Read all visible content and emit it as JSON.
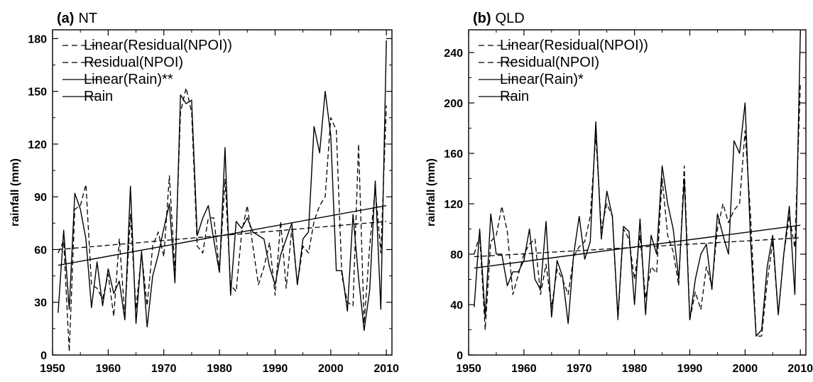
{
  "chart_data": [
    {
      "type": "line",
      "panel": "(a)",
      "title": "NT",
      "xlabel": "",
      "ylabel": "rainfall (mm)",
      "xlim": [
        1950,
        2011
      ],
      "ylim": [
        0,
        185
      ],
      "xticks": [
        1950,
        1960,
        1970,
        1980,
        1990,
        2000,
        2010
      ],
      "yticks": [
        0,
        30,
        60,
        90,
        120,
        150,
        180
      ],
      "grid": false,
      "legend_position": "top-left",
      "x": [
        1951,
        1952,
        1953,
        1954,
        1955,
        1956,
        1957,
        1958,
        1959,
        1960,
        1961,
        1962,
        1963,
        1964,
        1965,
        1966,
        1967,
        1968,
        1969,
        1970,
        1971,
        1972,
        1973,
        1974,
        1975,
        1976,
        1977,
        1978,
        1979,
        1980,
        1981,
        1982,
        1983,
        1984,
        1985,
        1986,
        1987,
        1988,
        1989,
        1990,
        1991,
        1992,
        1993,
        1994,
        1995,
        1996,
        1997,
        1998,
        1999,
        2000,
        2001,
        2002,
        2003,
        2004,
        2005,
        2006,
        2007,
        2008,
        2009,
        2010
      ],
      "series": [
        {
          "name": "Linear(Residual(NPOI))",
          "style": "dashed",
          "x": [
            1951,
            2010
          ],
          "values": [
            60,
            76
          ]
        },
        {
          "name": "Residual(NPOI)",
          "style": "dashed",
          "values": [
            58,
            65,
            2,
            83,
            85,
            97,
            40,
            38,
            32,
            46,
            22,
            66,
            22,
            80,
            26,
            58,
            28,
            62,
            70,
            56,
            102,
            48,
            138,
            152,
            138,
            62,
            58,
            78,
            78,
            48,
            100,
            40,
            36,
            70,
            85,
            62,
            40,
            50,
            64,
            34,
            76,
            38,
            72,
            40,
            62,
            58,
            76,
            85,
            90,
            135,
            128,
            45,
            30,
            28,
            120,
            18,
            62,
            95,
            58,
            142
          ]
        },
        {
          "name": "Linear(Rain)**",
          "style": "solid",
          "x": [
            1951,
            2010
          ],
          "values": [
            51,
            85
          ]
        },
        {
          "name": "Rain",
          "style": "solid",
          "values": [
            24,
            71,
            26,
            92,
            83,
            66,
            27,
            53,
            28,
            49,
            35,
            42,
            20,
            96,
            18,
            59,
            16,
            45,
            57,
            72,
            86,
            41,
            148,
            143,
            145,
            68,
            78,
            85,
            65,
            47,
            118,
            34,
            76,
            72,
            78,
            70,
            68,
            66,
            50,
            40,
            57,
            66,
            75,
            40,
            66,
            70,
            130,
            115,
            150,
            125,
            48,
            48,
            25,
            80,
            44,
            14,
            37,
            99,
            26,
            179
          ]
        }
      ]
    },
    {
      "type": "line",
      "panel": "(b)",
      "title": "QLD",
      "xlabel": "",
      "ylabel": "rainfall (mm)",
      "xlim": [
        1950,
        2011
      ],
      "ylim": [
        0,
        258
      ],
      "xticks": [
        1950,
        1960,
        1970,
        1980,
        1990,
        2000,
        2010
      ],
      "yticks": [
        0,
        40,
        80,
        120,
        160,
        200,
        240
      ],
      "grid": false,
      "legend_position": "top-left",
      "x": [
        1951,
        1952,
        1953,
        1954,
        1955,
        1956,
        1957,
        1958,
        1959,
        1960,
        1961,
        1962,
        1963,
        1964,
        1965,
        1966,
        1967,
        1968,
        1969,
        1970,
        1971,
        1972,
        1973,
        1974,
        1975,
        1976,
        1977,
        1978,
        1979,
        1980,
        1981,
        1982,
        1983,
        1984,
        1985,
        1986,
        1987,
        1988,
        1989,
        1990,
        1991,
        1992,
        1993,
        1994,
        1995,
        1996,
        1997,
        1998,
        1999,
        2000,
        2001,
        2002,
        2003,
        2004,
        2005,
        2006,
        2007,
        2008,
        2009,
        2010
      ],
      "series": [
        {
          "name": "Linear(Residual(NPOI))",
          "style": "dashed",
          "x": [
            1951,
            2010
          ],
          "values": [
            78,
            93
          ]
        },
        {
          "name": "Residual(NPOI)",
          "style": "dashed",
          "values": [
            80,
            95,
            20,
            90,
            95,
            118,
            98,
            48,
            64,
            80,
            88,
            92,
            48,
            72,
            38,
            68,
            60,
            48,
            78,
            86,
            90,
            110,
            175,
            100,
            120,
            110,
            28,
            100,
            92,
            60,
            95,
            45,
            70,
            65,
            140,
            95,
            82,
            55,
            150,
            28,
            50,
            36,
            70,
            55,
            100,
            120,
            105,
            115,
            120,
            178,
            110,
            15,
            15,
            58,
            90,
            32,
            80,
            110,
            85,
            215
          ]
        },
        {
          "name": "Linear(Rain)*",
          "style": "solid",
          "x": [
            1951,
            2010
          ],
          "values": [
            69,
            103
          ]
        },
        {
          "name": "Rain",
          "style": "solid",
          "values": [
            38,
            100,
            30,
            112,
            80,
            80,
            55,
            66,
            66,
            75,
            100,
            60,
            52,
            106,
            30,
            75,
            62,
            25,
            80,
            110,
            76,
            90,
            185,
            92,
            130,
            110,
            30,
            102,
            98,
            40,
            108,
            32,
            95,
            80,
            150,
            120,
            100,
            60,
            140,
            28,
            60,
            80,
            88,
            52,
            112,
            95,
            80,
            170,
            160,
            200,
            90,
            15,
            20,
            70,
            95,
            32,
            80,
            118,
            48,
            257
          ]
        }
      ]
    }
  ]
}
